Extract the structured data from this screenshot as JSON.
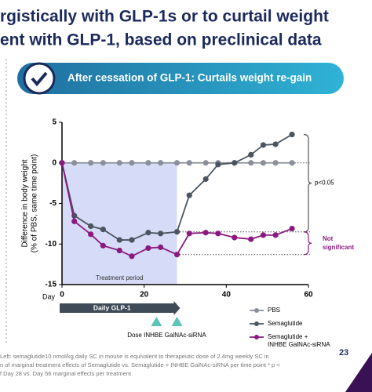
{
  "header": {
    "title_lines": [
      "rgistically with GLP-1s or to curtail weight",
      "ent with GLP-1, based on preclinical data"
    ],
    "banner": "After cessation of GLP-1: Curtails weight re-gain"
  },
  "chart_data": {
    "type": "line",
    "ylabel_lines": [
      "Difference in body weight",
      "(% of PBS, same time point)"
    ],
    "xlabel": "Day",
    "x": [
      0,
      3,
      7,
      10,
      14,
      17,
      21,
      24,
      28,
      31,
      35,
      38,
      42,
      46,
      49,
      52,
      56
    ],
    "series": [
      {
        "name": "PBS",
        "color": "#8a8f99",
        "values": [
          0,
          0,
          0,
          0,
          0,
          0,
          0,
          0,
          0,
          0,
          0,
          0,
          0,
          0,
          0,
          0,
          0
        ]
      },
      {
        "name": "Semaglutide",
        "color": "#4a5560",
        "values": [
          0,
          -6.5,
          -7.8,
          -8.2,
          -9.5,
          -9.5,
          -8.6,
          -8.7,
          -8.5,
          -4,
          -2,
          -0.2,
          0,
          1,
          2.2,
          2.3,
          3.5
        ]
      },
      {
        "name": "Semaglutide + INHBE GalNAc-siRNA",
        "color": "#8b1a7f",
        "values": [
          0,
          -7.2,
          -8.8,
          -10.2,
          -10.8,
          -11.5,
          -10.5,
          -10.4,
          -11.3,
          -8.7,
          -8.6,
          -8.7,
          -9.2,
          -9.4,
          -8.9,
          -8.9,
          -8.1
        ]
      }
    ],
    "xlim": [
      0,
      60
    ],
    "xticks": [
      0,
      20,
      40,
      60
    ],
    "ylim": [
      -15,
      5
    ],
    "yticks": [
      5,
      0,
      -5,
      -10,
      -15
    ],
    "treatment_period": [
      0,
      28
    ],
    "treatment_label": "Treatment period",
    "arrow_label": "Daily GLP-1",
    "dose_days": [
      23,
      28
    ],
    "dose_label": "Dose INHBE GalNAc-siRNA",
    "annotations": [
      "p<0.05",
      "Not significant"
    ]
  },
  "footer": {
    "page": "23",
    "notes": [
      "Left: semaglutide10 nmol/kg daily SC in mouse is equivalent to therapeutic dose of 2.4mg weekly SC in",
      "n of marginal treatment effects of Semaglutide vs. Semaglutide + INHBE GalNAc-siRNA per time point * p <",
      "f Day 28 vs. Day 56 marginal effects per treatment"
    ]
  }
}
